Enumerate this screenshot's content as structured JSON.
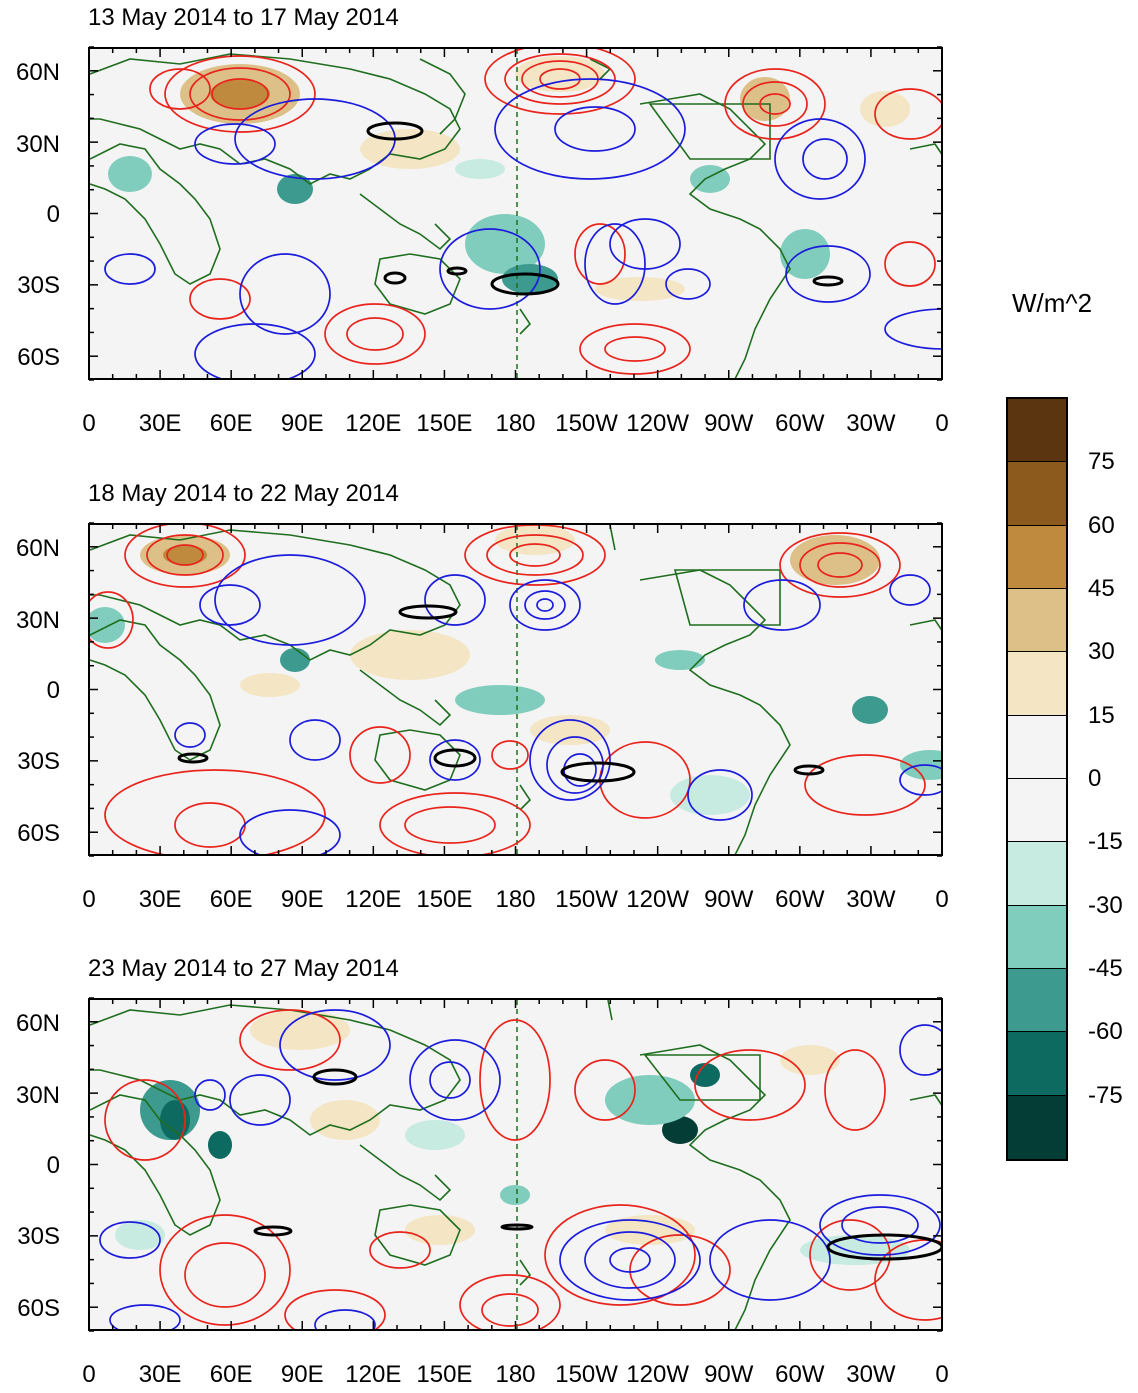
{
  "panels": [
    {
      "title": "13 May 2014 to 17 May 2014"
    },
    {
      "title": "18 May 2014 to 22 May 2014"
    },
    {
      "title": "23 May 2014 to 27 May 2014"
    }
  ],
  "y_axis_labels": [
    "60N",
    "30N",
    "0",
    "30S",
    "60S"
  ],
  "x_axis_labels": [
    "0",
    "30E",
    "60E",
    "90E",
    "120E",
    "150E",
    "180",
    "150W",
    "120W",
    "90W",
    "60W",
    "30W",
    "0"
  ],
  "colorbar": {
    "unit": "W/m^2",
    "labels": [
      "75",
      "60",
      "45",
      "30",
      "15",
      "0",
      "-15",
      "-30",
      "-45",
      "-60",
      "-75"
    ],
    "colors": [
      "#5a3510",
      "#8c5a1c",
      "#c08a3e",
      "#dcc088",
      "#f4e6c4",
      "#f4f4f4",
      "#f4f4f4",
      "#c8ebe1",
      "#80cdbd",
      "#3d9a8e",
      "#0c6a60",
      "#033d36"
    ]
  },
  "colors": {
    "land_outline": "#1f6e1f",
    "positive_contour": "#e8241c",
    "negative_contour": "#1c1cdc",
    "significance_contour": "#000000"
  }
}
